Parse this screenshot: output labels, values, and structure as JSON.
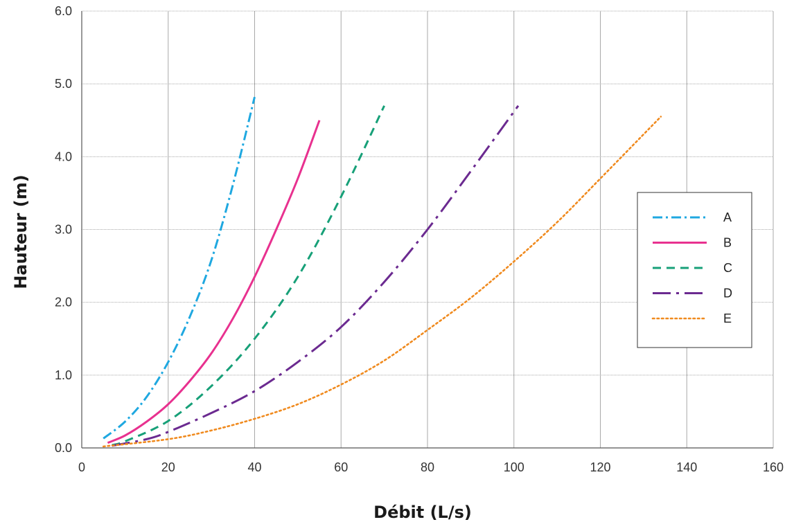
{
  "chart_data": {
    "type": "line",
    "title": "",
    "xlabel": "Débit (L/s)",
    "ylabel": "Hauteur (m)",
    "xlim": [
      0,
      160
    ],
    "ylim": [
      0,
      6
    ],
    "x_ticks": [
      "0",
      "20",
      "40",
      "60",
      "80",
      "100",
      "120",
      "140",
      "160"
    ],
    "y_ticks": [
      "0.0",
      "1.0",
      "2.0",
      "3.0",
      "4.0",
      "5.0",
      "6.0"
    ],
    "grid": true,
    "legend_position": "right",
    "series": [
      {
        "name": "A",
        "color": "#1fa8e0",
        "dash": "dashdot",
        "x": [
          5,
          10,
          15,
          20,
          25,
          30,
          35,
          40
        ],
        "y": [
          0.13,
          0.36,
          0.7,
          1.18,
          1.8,
          2.58,
          3.62,
          4.82
        ]
      },
      {
        "name": "B",
        "color": "#e8318f",
        "dash": "solid",
        "x": [
          6,
          10,
          15,
          20,
          25,
          30,
          35,
          40,
          45,
          50,
          55
        ],
        "y": [
          0.07,
          0.17,
          0.36,
          0.6,
          0.92,
          1.3,
          1.78,
          2.35,
          3.0,
          3.7,
          4.5
        ]
      },
      {
        "name": "C",
        "color": "#17a078",
        "dash": "dashed",
        "x": [
          7,
          10,
          20,
          30,
          40,
          50,
          60,
          70
        ],
        "y": [
          0.04,
          0.09,
          0.37,
          0.85,
          1.5,
          2.35,
          3.45,
          4.7
        ]
      },
      {
        "name": "D",
        "color": "#6b2a90",
        "dash": "longdashdot",
        "x": [
          7,
          15,
          20,
          30,
          40,
          50,
          60,
          70,
          80,
          90,
          101
        ],
        "y": [
          0.03,
          0.12,
          0.22,
          0.48,
          0.78,
          1.18,
          1.66,
          2.28,
          3.0,
          3.8,
          4.7
        ]
      },
      {
        "name": "E",
        "color": "#f08a1e",
        "dash": "dotted",
        "x": [
          5,
          20,
          30,
          40,
          50,
          60,
          70,
          80,
          90,
          100,
          110,
          120,
          134
        ],
        "y": [
          0.02,
          0.12,
          0.24,
          0.4,
          0.6,
          0.87,
          1.2,
          1.62,
          2.06,
          2.56,
          3.1,
          3.7,
          4.55
        ]
      }
    ]
  }
}
